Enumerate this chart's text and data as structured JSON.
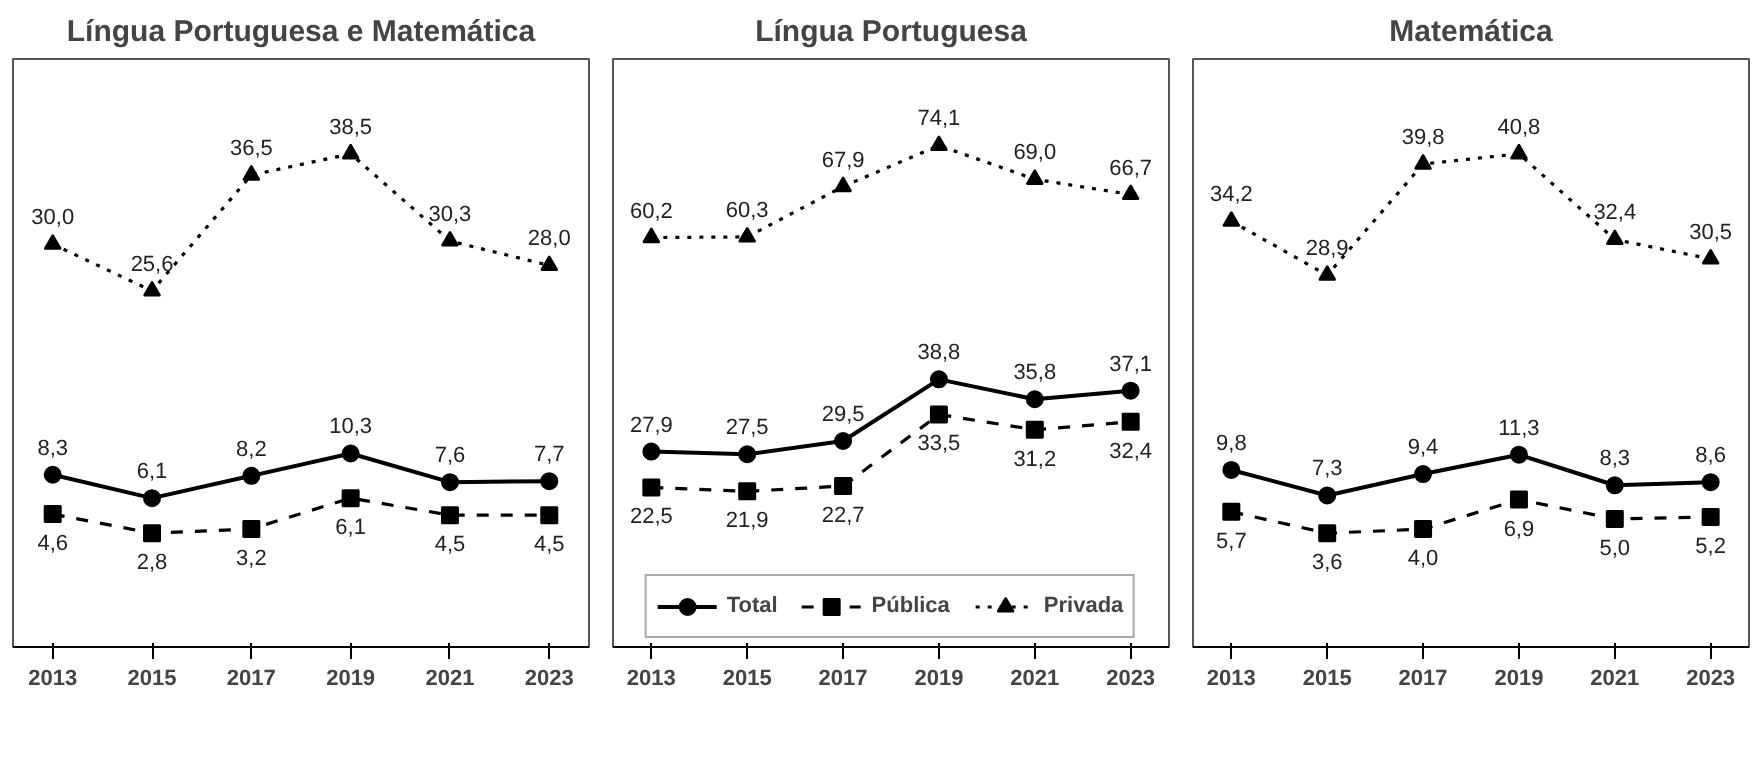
{
  "chart_data": [
    {
      "type": "line",
      "title": "Língua Portuguesa e Matemática",
      "categories": [
        "2013",
        "2015",
        "2017",
        "2019",
        "2021",
        "2023"
      ],
      "tick_labels": "x",
      "series": [
        {
          "color": "#000000",
          "marker": "circle",
          "line_style": "solid",
          "values": [
            8.3,
            6.1,
            8.2,
            10.3,
            7.6,
            7.7
          ],
          "value_labels": [
            "8,3",
            "6,1",
            "8,2",
            "10,3",
            "7,6",
            "7,7"
          ]
        },
        {
          "color": "#000000",
          "marker": "square",
          "line_style": "dashed",
          "values": [
            4.6,
            2.8,
            3.2,
            6.1,
            4.5,
            4.5
          ],
          "value_labels": [
            "4,6",
            "2,8",
            "3,2",
            "6,1",
            "4,5",
            "4,5"
          ]
        },
        {
          "color": "#000000",
          "marker": "triangle",
          "line_style": "dotted",
          "values": [
            30.0,
            25.6,
            36.5,
            38.5,
            30.3,
            28.0
          ],
          "value_labels": [
            "30,0",
            "25,6",
            "36,5",
            "38,5",
            "30,3",
            "28,0"
          ]
        }
      ]
    },
    {
      "type": "line",
      "title": "Língua Portuguesa",
      "categories": [
        "2013",
        "2015",
        "2017",
        "2019",
        "2021",
        "2023"
      ],
      "tick_labels": "x",
      "legend": "bottom",
      "series": [
        {
          "name": "Total",
          "color": "#000000",
          "marker": "circle",
          "line_style": "solid",
          "values": [
            27.9,
            27.5,
            29.5,
            38.8,
            35.8,
            37.1
          ],
          "value_labels": [
            "27,9",
            "27,5",
            "29,5",
            "38,8",
            "35,8",
            "37,1"
          ]
        },
        {
          "name": "Pública",
          "color": "#000000",
          "marker": "square",
          "line_style": "dashed",
          "values": [
            22.5,
            21.9,
            22.7,
            33.5,
            31.2,
            32.4
          ],
          "value_labels": [
            "22,5",
            "21,9",
            "22,7",
            "33,5",
            "31,2",
            "32,4"
          ]
        },
        {
          "name": "Privada",
          "color": "#000000",
          "marker": "triangle",
          "line_style": "dotted",
          "values": [
            60.2,
            60.3,
            67.9,
            74.1,
            69.0,
            66.7
          ],
          "value_labels": [
            "60,2",
            "60,3",
            "67,9",
            "74,1",
            "69,0",
            "66,7"
          ]
        }
      ]
    },
    {
      "type": "line",
      "title": "Matemática",
      "categories": [
        "2013",
        "2015",
        "2017",
        "2019",
        "2021",
        "2023"
      ],
      "tick_labels": "x",
      "series": [
        {
          "color": "#000000",
          "marker": "circle",
          "line_style": "solid",
          "values": [
            9.8,
            7.3,
            9.4,
            11.3,
            8.3,
            8.6
          ],
          "value_labels": [
            "9,8",
            "7,3",
            "9,4",
            "11,3",
            "8,3",
            "8,6"
          ]
        },
        {
          "color": "#000000",
          "marker": "square",
          "line_style": "dashed",
          "values": [
            5.7,
            3.6,
            4.0,
            6.9,
            5.0,
            5.2
          ],
          "value_labels": [
            "5,7",
            "3,6",
            "4,0",
            "6,9",
            "5,0",
            "5,2"
          ]
        },
        {
          "color": "#000000",
          "marker": "triangle",
          "line_style": "dotted",
          "values": [
            34.2,
            28.9,
            39.8,
            40.8,
            32.4,
            30.5
          ],
          "value_labels": [
            "34,2",
            "28,9",
            "39,8",
            "40,8",
            "32,4",
            "30,5"
          ]
        }
      ]
    }
  ]
}
